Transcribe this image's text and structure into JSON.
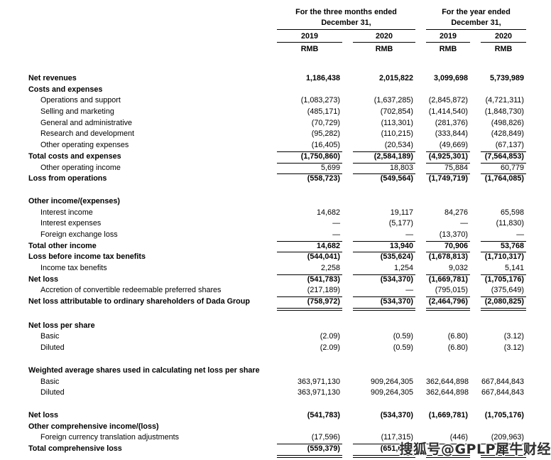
{
  "header": {
    "group1": {
      "line1": "For the three months ended",
      "line2": "December 31,"
    },
    "group2": {
      "line1": "For the year ended",
      "line2": "December 31,"
    },
    "years": [
      "2019",
      "2020",
      "2019",
      "2020"
    ],
    "units": [
      "RMB",
      "RMB",
      "RMB",
      "RMB"
    ]
  },
  "rows": [
    {
      "label": "Net revenues",
      "bold": true,
      "values": [
        "1,186,438",
        "2,015,822",
        "3,099,698",
        "5,739,989"
      ]
    },
    {
      "label": "Costs and expenses",
      "bold": true
    },
    {
      "label": "Operations and support",
      "indent": true,
      "values": [
        "(1,083,273)",
        "(1,637,285)",
        "(2,845,872)",
        "(4,721,311)"
      ]
    },
    {
      "label": "Selling and marketing",
      "indent": true,
      "values": [
        "(485,171)",
        "(702,854)",
        "(1,414,540)",
        "(1,848,730)"
      ]
    },
    {
      "label": "General and administrative",
      "indent": true,
      "values": [
        "(70,729)",
        "(113,301)",
        "(281,376)",
        "(498,826)"
      ]
    },
    {
      "label": "Research and development",
      "indent": true,
      "values": [
        "(95,282)",
        "(110,215)",
        "(333,844)",
        "(428,849)"
      ]
    },
    {
      "label": "Other operating expenses",
      "indent": true,
      "values": [
        "(16,405)",
        "(20,534)",
        "(49,669)",
        "(67,137)"
      ],
      "rule": "single"
    },
    {
      "label": "Total costs and expenses",
      "bold": true,
      "values": [
        "(1,750,860)",
        "(2,584,189)",
        "(4,925,301)",
        "(7,564,853)"
      ],
      "rule": "single"
    },
    {
      "label": "Other operating income",
      "indent": true,
      "values": [
        "5,699",
        "18,803",
        "75,884",
        "60,779"
      ],
      "rule": "single"
    },
    {
      "label": "Loss from operations",
      "bold": true,
      "values": [
        "(558,723)",
        "(549,564)",
        "(1,749,719)",
        "(1,764,085)"
      ]
    },
    {
      "label": "Other income/(expenses)",
      "bold": true,
      "gap_before": 16
    },
    {
      "label": "Interest income",
      "indent": true,
      "values": [
        "14,682",
        "19,117",
        "84,276",
        "65,598"
      ]
    },
    {
      "label": "Interest expenses",
      "indent": true,
      "values": [
        "—",
        "(5,177)",
        "—",
        "(11,830)"
      ]
    },
    {
      "label": "Foreign exchange loss",
      "indent": true,
      "values": [
        "—",
        "—",
        "(13,370)",
        "—"
      ],
      "rule": "single"
    },
    {
      "label": "Total other income",
      "bold": true,
      "values": [
        "14,682",
        "13,940",
        "70,906",
        "53,768"
      ],
      "rule": "single"
    },
    {
      "label": "Loss before income tax benefits",
      "bold": true,
      "values": [
        "(544,041)",
        "(535,624)",
        "(1,678,813)",
        "(1,710,317)"
      ]
    },
    {
      "label": "Income tax benefits",
      "indent": true,
      "values": [
        "2,258",
        "1,254",
        "9,032",
        "5,141"
      ],
      "rule": "single"
    },
    {
      "label": "Net loss",
      "bold": true,
      "values": [
        "(541,783)",
        "(534,370)",
        "(1,669,781)",
        "(1,705,176)"
      ]
    },
    {
      "label": "Accretion of convertible redeemable preferred shares",
      "indent": true,
      "values": [
        "(217,189)",
        "—",
        "(795,015)",
        "(375,649)"
      ],
      "rule": "single"
    },
    {
      "label": "Net loss attributable to ordinary shareholders of Dada Group",
      "bold": true,
      "values": [
        "(758,972)",
        "(534,370)",
        "(2,464,796)",
        "(2,080,825)"
      ],
      "rule": "double"
    },
    {
      "label": "Net loss per share",
      "bold": true,
      "gap_before": 18
    },
    {
      "label": "Basic",
      "indent": true,
      "values": [
        "(2.09)",
        "(0.59)",
        "(6.80)",
        "(3.12)"
      ]
    },
    {
      "label": "Diluted",
      "indent": true,
      "values": [
        "(2.09)",
        "(0.59)",
        "(6.80)",
        "(3.12)"
      ]
    },
    {
      "label": "Weighted average shares used in calculating net loss per share",
      "bold": true,
      "gap_before": 16
    },
    {
      "label": "Basic",
      "indent": true,
      "values": [
        "363,971,130",
        "909,264,305",
        "362,644,898",
        "667,844,843"
      ]
    },
    {
      "label": "Diluted",
      "indent": true,
      "values": [
        "363,971,130",
        "909,264,305",
        "362,644,898",
        "667,844,843"
      ]
    },
    {
      "label": "Net loss",
      "bold": true,
      "values": [
        "(541,783)",
        "(534,370)",
        "(1,669,781)",
        "(1,705,176)"
      ],
      "gap_before": 16
    },
    {
      "label": "Other comprehensive income/(loss)",
      "bold": true
    },
    {
      "label": "Foreign currency translation adjustments",
      "indent": true,
      "values": [
        "(17,596)",
        "(117,315)",
        "(446)",
        "(209,963)"
      ],
      "rule": "single"
    },
    {
      "label": "Total comprehensive loss",
      "bold": true,
      "values": [
        "(559,379)",
        "(651,685)",
        "",
        ""
      ],
      "rule": "double"
    }
  ],
  "watermark": {
    "text": "搜狐号@GPLP犀牛财经",
    "color": "#2e2e2e"
  }
}
